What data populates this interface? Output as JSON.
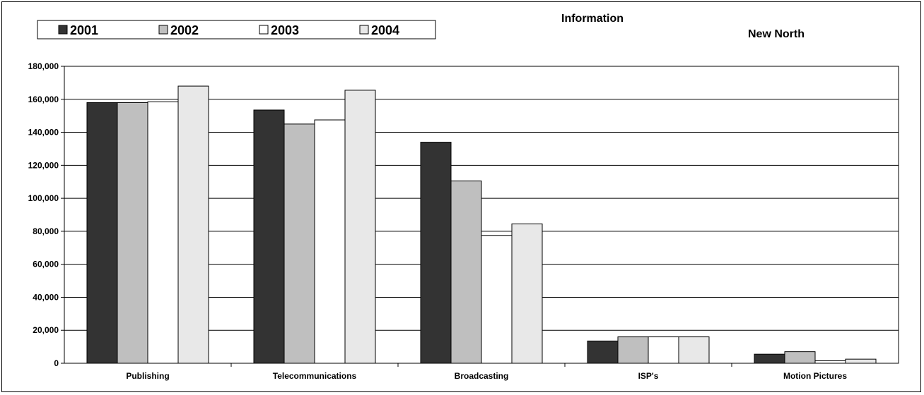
{
  "chart_data": {
    "type": "bar",
    "title": "Information",
    "subtitle": "New North",
    "xlabel": "",
    "ylabel": "",
    "categories": [
      "Publishing",
      "Telecommunications",
      "Broadcasting",
      "ISP's",
      "Motion Pictures"
    ],
    "series": [
      {
        "name": "2001",
        "color": "#333333",
        "values": [
          158000,
          153500,
          134000,
          13500,
          5500
        ]
      },
      {
        "name": "2002",
        "color": "#bfbfbf",
        "values": [
          158000,
          145000,
          110500,
          16000,
          7000
        ]
      },
      {
        "name": "2003",
        "color": "#ffffff",
        "values": [
          158500,
          147500,
          77500,
          16000,
          1500
        ]
      },
      {
        "name": "2004",
        "color": "#e8e8e8",
        "values": [
          168000,
          165500,
          84500,
          16000,
          2500
        ]
      }
    ],
    "ylim": [
      0,
      180000
    ],
    "yticks": [
      "0",
      "20,000",
      "40,000",
      "60,000",
      "80,000",
      "100,000",
      "120,000",
      "140,000",
      "160,000",
      "180,000"
    ],
    "grid": true,
    "legend_position": "top-left"
  }
}
